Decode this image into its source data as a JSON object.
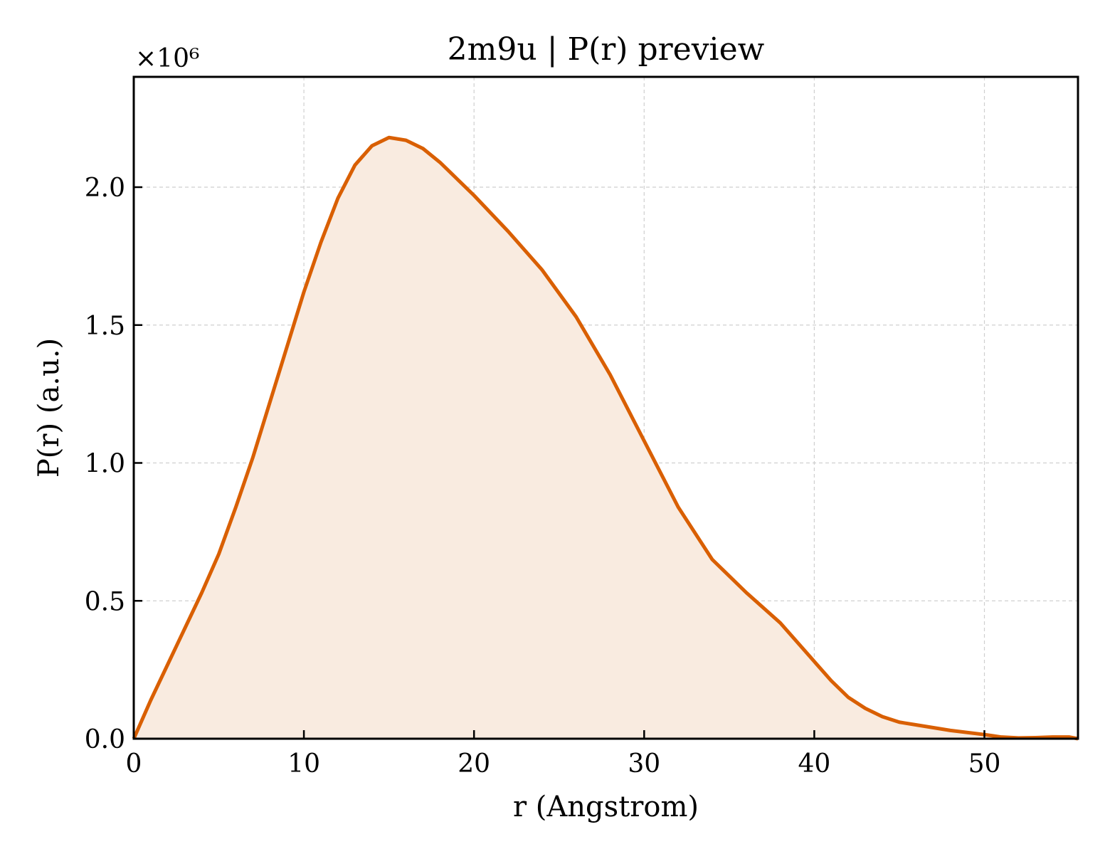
{
  "chart_data": {
    "type": "area",
    "title": "2m9u | P(r) preview",
    "xlabel": "r (Angstrom)",
    "ylabel": "P(r) (a.u.)",
    "y_multiplier": "×10⁶",
    "xlim": [
      0,
      55.5
    ],
    "ylim": [
      0,
      2.4
    ],
    "xticks": [
      0,
      10,
      20,
      30,
      40,
      50
    ],
    "xtick_labels": [
      "0",
      "10",
      "20",
      "30",
      "40",
      "50"
    ],
    "yticks": [
      0,
      0.5,
      1.0,
      1.5,
      2.0
    ],
    "ytick_labels": [
      "0.0",
      "0.5",
      "1.0",
      "1.5",
      "2.0"
    ],
    "grid": true,
    "colors": {
      "line": "#d95f02",
      "fill": "#f9ebe0"
    },
    "series": [
      {
        "x": [
          0,
          1,
          2,
          3,
          4,
          5,
          6,
          7,
          8,
          9,
          10,
          11,
          12,
          13,
          14,
          15,
          16,
          17,
          18,
          19,
          20,
          22,
          24,
          26,
          28,
          30,
          32,
          34,
          36,
          38,
          40,
          41,
          42,
          43,
          44,
          45,
          46,
          48,
          50,
          51,
          52,
          53,
          54,
          55,
          55.5
        ],
        "y": [
          0,
          0.14,
          0.27,
          0.4,
          0.53,
          0.67,
          0.84,
          1.02,
          1.22,
          1.42,
          1.62,
          1.8,
          1.96,
          2.08,
          2.15,
          2.18,
          2.17,
          2.14,
          2.09,
          2.03,
          1.97,
          1.84,
          1.7,
          1.53,
          1.32,
          1.08,
          0.84,
          0.65,
          0.53,
          0.42,
          0.28,
          0.21,
          0.15,
          0.11,
          0.08,
          0.06,
          0.05,
          0.03,
          0.015,
          0.006,
          0.003,
          0.004,
          0.006,
          0.006,
          0.0
        ]
      }
    ]
  }
}
